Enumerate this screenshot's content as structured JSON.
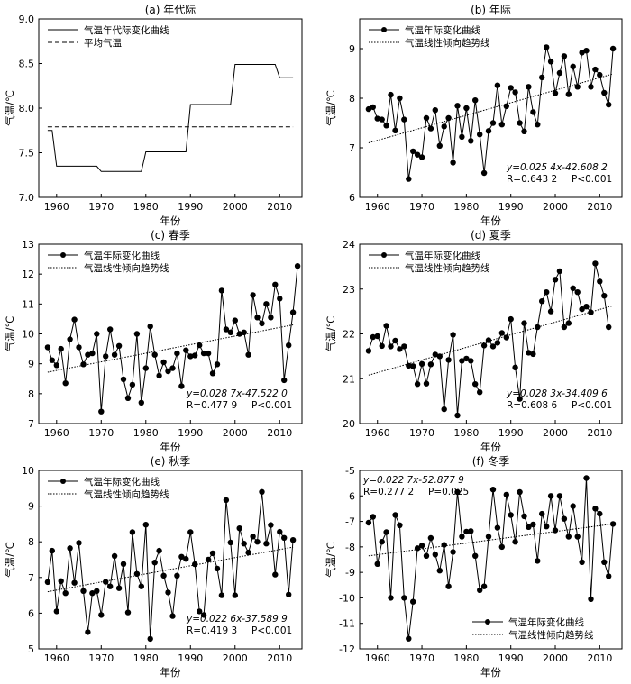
{
  "chart_data": [
    {
      "type": "line",
      "title": "(a) 年代际",
      "xlabel": "年份",
      "ylabel": "气温/℃",
      "xlim": [
        1956,
        2015
      ],
      "ylim": [
        7.0,
        9.0
      ],
      "xticks": [
        1960,
        1970,
        1980,
        1990,
        2000,
        2010
      ],
      "yticks": [
        7.0,
        7.5,
        8.0,
        8.5,
        9.0
      ],
      "ytick_decimals": 1,
      "legend_position": "top-left",
      "grid": false,
      "series": [
        {
          "name": "气温年代际变化曲线",
          "style": "solid",
          "points": [
            [
              1958,
              7.75
            ],
            [
              1959,
              7.75
            ],
            [
              1960,
              7.35
            ],
            [
              1969,
              7.35
            ],
            [
              1970,
              7.29
            ],
            [
              1979,
              7.29
            ],
            [
              1980,
              7.51
            ],
            [
              1989,
              7.51
            ],
            [
              1990,
              8.04
            ],
            [
              1999,
              8.04
            ],
            [
              2000,
              8.49
            ],
            [
              2009,
              8.49
            ],
            [
              2010,
              8.34
            ],
            [
              2013,
              8.34
            ]
          ]
        },
        {
          "name": "平均气温",
          "style": "dashed",
          "points": [
            [
              1958,
              7.79
            ],
            [
              2013,
              7.79
            ]
          ]
        }
      ]
    },
    {
      "type": "line",
      "title": "(b) 年际",
      "xlabel": "年份",
      "ylabel": "气温/℃",
      "xlim": [
        1956,
        2015
      ],
      "ylim": [
        6,
        9.6
      ],
      "xticks": [
        1960,
        1970,
        1980,
        1990,
        2000,
        2010
      ],
      "yticks": [
        6,
        7,
        8,
        9
      ],
      "ytick_decimals": 0,
      "legend_position": "top-left",
      "grid": false,
      "x_start": 1958,
      "series": [
        {
          "name": "气温年际变化曲线",
          "style": "markers",
          "values": [
            7.78,
            7.82,
            7.59,
            7.57,
            7.45,
            8.07,
            7.35,
            8.0,
            7.57,
            6.37,
            6.93,
            6.86,
            6.81,
            7.6,
            7.39,
            7.76,
            7.04,
            7.43,
            7.6,
            6.7,
            7.85,
            7.22,
            7.8,
            7.14,
            7.96,
            7.27,
            6.49,
            7.34,
            7.5,
            8.26,
            7.47,
            7.84,
            8.21,
            8.12,
            7.5,
            7.33,
            8.23,
            7.72,
            7.47,
            8.42,
            9.03,
            8.74,
            8.1,
            8.51,
            8.85,
            8.08,
            8.64,
            8.23,
            8.92,
            8.96,
            8.23,
            8.58,
            8.47,
            8.11,
            7.87,
            9.0
          ]
        },
        {
          "name": "气温线性倾向趋势线",
          "style": "dotted",
          "points": [
            [
              1958,
              7.1
            ],
            [
              2013,
              8.49
            ]
          ]
        }
      ],
      "annotations": [
        "y=0.025 4x-42.608 2",
        "R=0.643 2",
        "P<0.001"
      ]
    },
    {
      "type": "line",
      "title": "(c) 春季",
      "xlabel": "年份",
      "ylabel": "气温/℃",
      "xlim": [
        1956,
        2015
      ],
      "ylim": [
        7,
        13
      ],
      "xticks": [
        1960,
        1970,
        1980,
        1990,
        2000,
        2010
      ],
      "yticks": [
        7,
        8,
        9,
        10,
        11,
        12,
        13
      ],
      "ytick_decimals": 0,
      "legend_position": "top-left",
      "grid": false,
      "x_start": 1958,
      "series": [
        {
          "name": "气温年际变化曲线",
          "style": "markers",
          "values": [
            9.55,
            9.12,
            8.95,
            9.5,
            8.35,
            9.82,
            10.48,
            9.55,
            8.98,
            9.3,
            9.35,
            10.0,
            7.4,
            9.25,
            10.15,
            9.3,
            9.6,
            8.48,
            7.85,
            8.3,
            10.0,
            7.7,
            8.85,
            10.25,
            9.3,
            8.6,
            9.05,
            8.75,
            8.85,
            9.35,
            8.25,
            9.45,
            9.25,
            9.28,
            9.62,
            9.35,
            9.35,
            8.68,
            8.98,
            11.45,
            10.15,
            10.05,
            10.45,
            10.0,
            10.05,
            9.3,
            11.3,
            10.55,
            10.35,
            11.0,
            10.55,
            11.65,
            11.18,
            8.45,
            9.62,
            10.72,
            12.27
          ]
        },
        {
          "name": "气温线性倾向趋势线",
          "style": "dotted",
          "points": [
            [
              1958,
              8.72
            ],
            [
              2013,
              10.3
            ]
          ]
        }
      ],
      "annotations": [
        "y=0.028 7x-47.522 0",
        "R=0.477 9",
        "P<0.001"
      ]
    },
    {
      "type": "line",
      "title": "(d) 夏季",
      "xlabel": "年份",
      "ylabel": "气温/℃",
      "xlim": [
        1956,
        2015
      ],
      "ylim": [
        20,
        24
      ],
      "xticks": [
        1960,
        1970,
        1980,
        1990,
        2000,
        2010
      ],
      "yticks": [
        20,
        21,
        22,
        23,
        24
      ],
      "ytick_decimals": 0,
      "legend_position": "top-left",
      "grid": false,
      "x_start": 1958,
      "series": [
        {
          "name": "气温年际变化曲线",
          "style": "markers",
          "values": [
            21.62,
            21.93,
            21.95,
            21.73,
            22.18,
            21.72,
            21.85,
            21.66,
            21.72,
            21.29,
            21.28,
            20.88,
            21.33,
            20.89,
            21.32,
            21.54,
            21.5,
            20.32,
            21.42,
            21.98,
            20.18,
            21.4,
            21.45,
            21.4,
            20.88,
            20.7,
            21.74,
            21.86,
            21.72,
            21.8,
            22.02,
            21.92,
            22.33,
            21.25,
            20.55,
            22.24,
            21.58,
            21.55,
            22.15,
            22.73,
            22.93,
            22.5,
            23.21,
            23.4,
            22.15,
            22.24,
            23.02,
            22.93,
            22.55,
            22.61,
            22.48,
            23.57,
            23.17,
            22.85,
            22.15
          ]
        },
        {
          "name": "气温线性倾向趋势线",
          "style": "dotted",
          "points": [
            [
              1958,
              21.08
            ],
            [
              2013,
              22.63
            ]
          ]
        }
      ],
      "annotations": [
        "y=0.028 3x-34.409 6",
        "R=0.608 6",
        "P<0.001"
      ]
    },
    {
      "type": "line",
      "title": "(e) 秋季",
      "xlabel": "年份",
      "ylabel": "气温/℃",
      "xlim": [
        1956,
        2015
      ],
      "ylim": [
        5,
        10
      ],
      "xticks": [
        1960,
        1970,
        1980,
        1990,
        2000,
        2010
      ],
      "yticks": [
        5,
        6,
        7,
        8,
        9,
        10
      ],
      "ytick_decimals": 0,
      "legend_position": "top-left",
      "grid": false,
      "x_start": 1958,
      "series": [
        {
          "name": "气温年际变化曲线",
          "style": "markers",
          "values": [
            6.87,
            7.75,
            6.05,
            6.9,
            6.56,
            7.82,
            6.85,
            7.97,
            6.62,
            5.47,
            6.56,
            6.62,
            5.95,
            6.88,
            6.75,
            7.6,
            6.7,
            7.38,
            6.02,
            8.27,
            7.1,
            6.75,
            8.48,
            5.28,
            7.42,
            7.75,
            7.05,
            6.58,
            5.92,
            7.05,
            7.58,
            7.52,
            8.27,
            7.37,
            6.05,
            5.95,
            7.5,
            7.68,
            7.25,
            6.5,
            9.17,
            7.98,
            6.5,
            8.38,
            7.95,
            7.7,
            8.15,
            8.0,
            9.4,
            7.95,
            8.47,
            7.08,
            8.28,
            8.11,
            6.52,
            8.05
          ]
        },
        {
          "name": "气温线性倾向趋势线",
          "style": "dotted",
          "points": [
            [
              1958,
              6.6
            ],
            [
              2013,
              7.85
            ]
          ]
        }
      ],
      "annotations": [
        "y=0.022 6x-37.589 9",
        "R=0.419 3",
        "P<0.001"
      ]
    },
    {
      "type": "line",
      "title": "(f) 冬季",
      "xlabel": "年份",
      "ylabel": "气温/℃",
      "xlim": [
        1956,
        2015
      ],
      "ylim": [
        -12,
        -5
      ],
      "xticks": [
        1960,
        1970,
        1980,
        1990,
        2000,
        2010
      ],
      "yticks": [
        -12,
        -11,
        -10,
        -9,
        -8,
        -7,
        -6,
        -5
      ],
      "ytick_decimals": 0,
      "legend_position": "bottom-right",
      "grid": false,
      "x_start": 1958,
      "series": [
        {
          "name": "气温年际变化曲线",
          "style": "markers",
          "values": [
            -7.05,
            -6.82,
            -8.67,
            -7.8,
            -7.42,
            -10.0,
            -6.75,
            -7.15,
            -10.0,
            -11.6,
            -10.15,
            -8.05,
            -7.95,
            -8.35,
            -7.65,
            -8.3,
            -8.93,
            -7.92,
            -9.55,
            -8.2,
            -5.85,
            -7.6,
            -7.4,
            -7.38,
            -8.35,
            -9.7,
            -9.55,
            -7.6,
            -5.75,
            -7.25,
            -8.0,
            -5.95,
            -6.75,
            -7.8,
            -5.85,
            -6.8,
            -7.22,
            -7.12,
            -8.55,
            -6.7,
            -7.2,
            -6.0,
            -7.35,
            -6.0,
            -6.9,
            -7.6,
            -6.4,
            -7.6,
            -8.6,
            -5.3,
            -10.05,
            -6.5,
            -6.7,
            -8.6,
            -9.15,
            -7.1
          ]
        },
        {
          "name": "气温线性倾向趋势线",
          "style": "dotted",
          "points": [
            [
              1958,
              -8.35
            ],
            [
              2013,
              -7.1
            ]
          ]
        }
      ],
      "annotations": [
        "y=0.022 7x-52.877 9",
        "R=0.277 2",
        "P=0.025"
      ]
    }
  ]
}
